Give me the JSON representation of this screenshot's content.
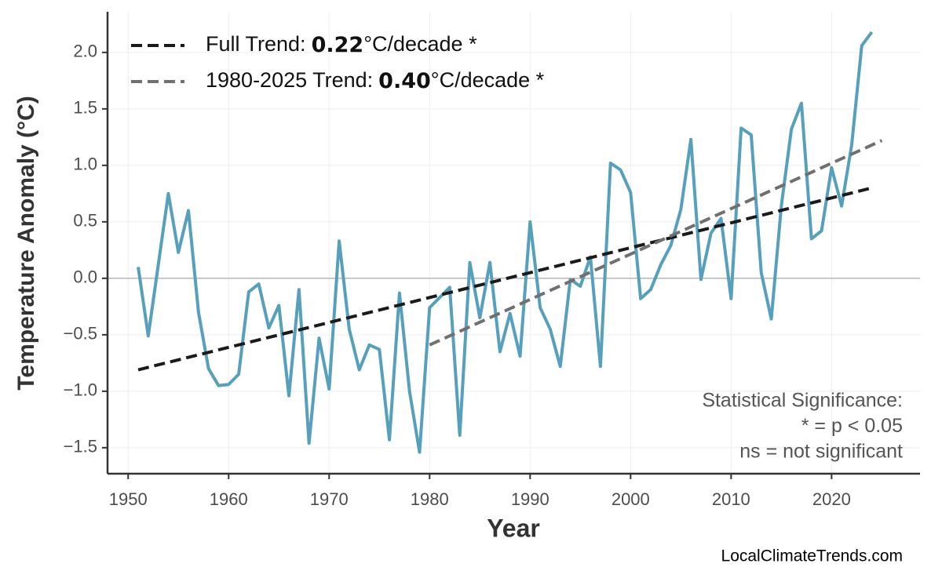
{
  "chart_data": {
    "type": "line",
    "y_label": "Temperature Anomaly (°C)",
    "x_label": "Year",
    "x": [
      1951,
      1952,
      1953,
      1954,
      1955,
      1956,
      1957,
      1958,
      1959,
      1960,
      1961,
      1962,
      1963,
      1964,
      1965,
      1966,
      1967,
      1968,
      1969,
      1970,
      1971,
      1972,
      1973,
      1974,
      1975,
      1976,
      1977,
      1978,
      1979,
      1980,
      1981,
      1982,
      1983,
      1984,
      1985,
      1986,
      1987,
      1988,
      1989,
      1990,
      1991,
      1992,
      1993,
      1994,
      1995,
      1996,
      1997,
      1998,
      1999,
      2000,
      2001,
      2002,
      2003,
      2004,
      2005,
      2006,
      2007,
      2008,
      2009,
      2010,
      2011,
      2012,
      2013,
      2014,
      2015,
      2016,
      2017,
      2018,
      2019,
      2020,
      2021,
      2022,
      2023,
      2024
    ],
    "series": [
      {
        "color": "#569fbd",
        "values": [
          0.1,
          -0.51,
          0.12,
          0.75,
          0.23,
          0.6,
          -0.3,
          -0.8,
          -0.95,
          -0.94,
          -0.85,
          -0.12,
          -0.05,
          -0.44,
          -0.24,
          -1.04,
          -0.1,
          -1.46,
          -0.53,
          -0.98,
          0.33,
          -0.45,
          -0.81,
          -0.59,
          -0.63,
          -1.43,
          -0.13,
          -1.0,
          -1.54,
          -0.26,
          -0.17,
          -0.08,
          -1.39,
          0.14,
          -0.35,
          0.14,
          -0.65,
          -0.31,
          -0.69,
          0.5,
          -0.26,
          -0.45,
          -0.78,
          -0.01,
          -0.07,
          0.19,
          -0.78,
          1.02,
          0.96,
          0.76,
          -0.18,
          -0.1,
          0.12,
          0.29,
          0.61,
          1.23,
          -0.01,
          0.4,
          0.53,
          -0.18,
          1.33,
          1.27,
          0.05,
          -0.36,
          0.64,
          1.32,
          1.55,
          0.35,
          0.42,
          0.98,
          0.64,
          1.18,
          2.06,
          2.18
        ]
      },
      {
        "name": "Full Trend:",
        "trend": "0.22",
        "unit": "°C/decade *",
        "color": "#1a1a1a",
        "dashed": true,
        "x": [
          1951,
          2024
        ],
        "values": [
          -0.81,
          0.8
        ]
      },
      {
        "name": "1980-2025 Trend:",
        "trend": "0.40",
        "unit": "°C/decade *",
        "color": "#707070",
        "dashed": true,
        "x": [
          1980,
          2025
        ],
        "values": [
          -0.59,
          1.22
        ]
      }
    ],
    "reference_line": 0,
    "xlim": [
      1947.95,
      2028.8
    ],
    "ylim": [
      -1.73,
      2.36
    ],
    "xticks": [
      1950,
      1960,
      1970,
      1980,
      1990,
      2000,
      2010,
      2020
    ],
    "yticks": [
      {
        "value": -1.5,
        "label": "−1.5"
      },
      {
        "value": -1.0,
        "label": "−1.0"
      },
      {
        "value": -0.5,
        "label": "−0.5"
      },
      {
        "value": 0,
        "label": "0.0"
      },
      0.5,
      {
        "value": 1.0,
        "label": "1.0"
      },
      1.5,
      {
        "value": 2.0,
        "label": "2.0"
      }
    ],
    "grid": true,
    "legend": "upper left",
    "annotation": [
      "Statistical Significance:",
      "* = p < 0.05",
      "ns = not significant"
    ],
    "source": "LocalClimateTrends.com"
  }
}
